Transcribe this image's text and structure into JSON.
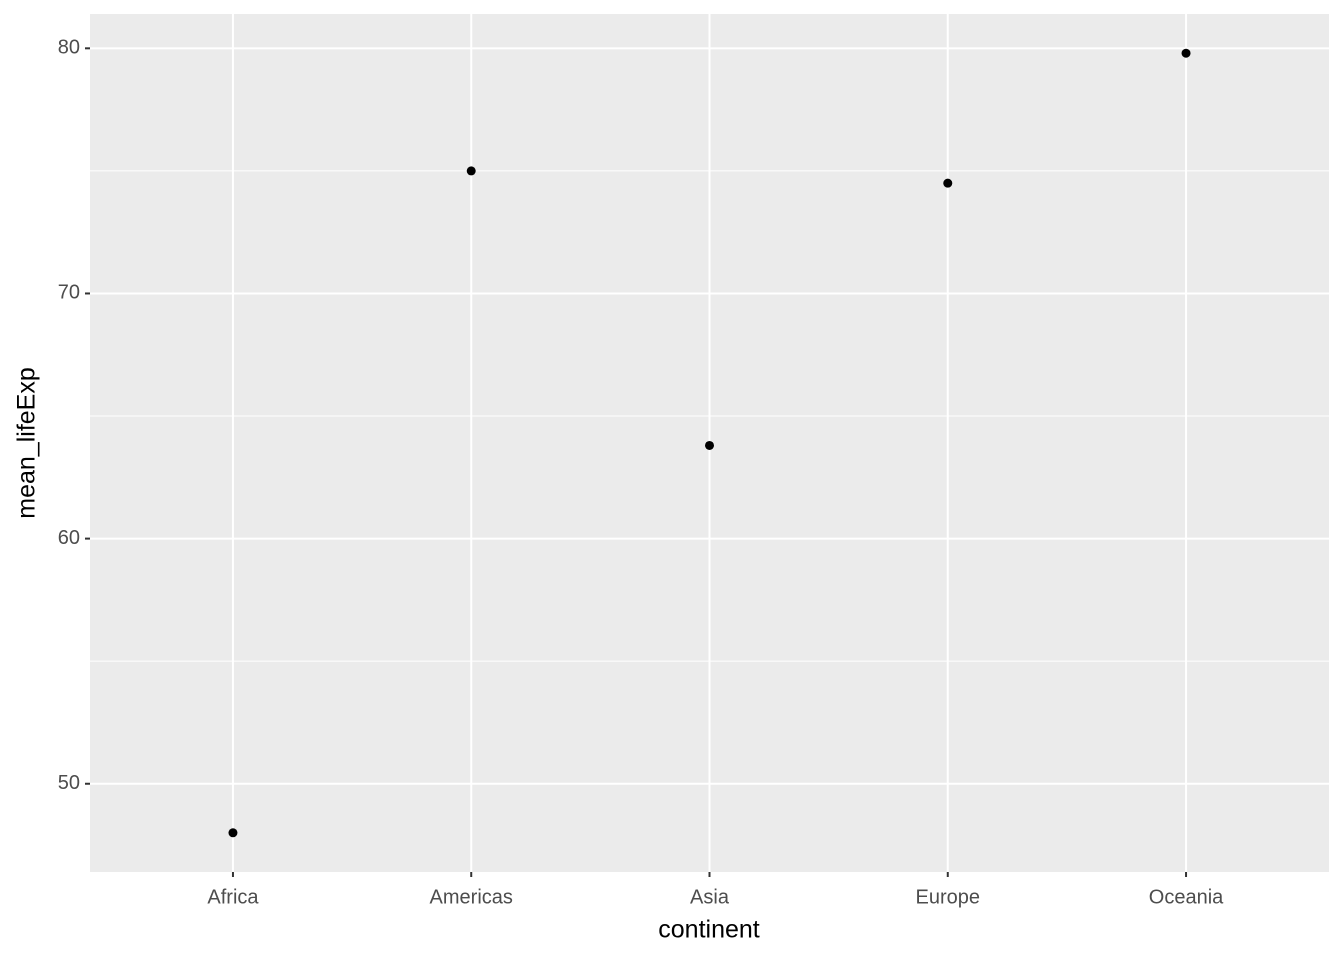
{
  "chart_data": {
    "type": "scatter",
    "x_label": "continent",
    "y_label": "mean_lifeExp",
    "categories": [
      "Africa",
      "Americas",
      "Asia",
      "Europe",
      "Oceania"
    ],
    "values": [
      48.0,
      75.0,
      63.8,
      74.5,
      79.8
    ],
    "color": "#000000",
    "ylim": [
      46.4,
      81.4
    ],
    "yticks": [
      50,
      60,
      70,
      80
    ],
    "minor_yticks": [
      55,
      65,
      75
    ],
    "grid": true
  }
}
